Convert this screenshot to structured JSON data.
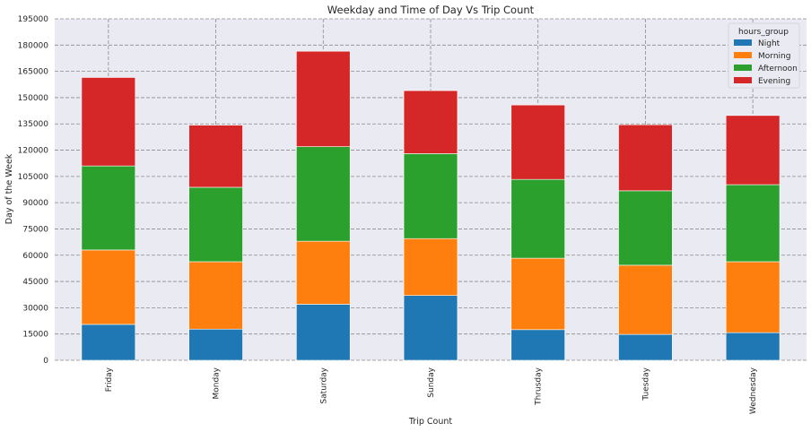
{
  "chart_data": {
    "type": "bar",
    "stacked": true,
    "title": "Weekday and Time of Day Vs Trip Count",
    "xlabel": "Trip Count",
    "ylabel": "Day of the Week",
    "ylim": [
      0,
      195000
    ],
    "yticks": [
      0,
      15000,
      30000,
      45000,
      60000,
      75000,
      90000,
      105000,
      120000,
      135000,
      150000,
      165000,
      180000,
      195000
    ],
    "grid": true,
    "legend": {
      "title": "hours_group",
      "position": "top-right"
    },
    "categories": [
      "Friday",
      "Monday",
      "Saturday",
      "Sunday",
      "Thrusday",
      "Tuesday",
      "Wednesday"
    ],
    "series": [
      {
        "name": "Night",
        "color": "#1f77b4",
        "values": [
          20500,
          17800,
          32000,
          37000,
          17500,
          14800,
          15800
        ]
      },
      {
        "name": "Morning",
        "color": "#ff7f0e",
        "values": [
          42500,
          38500,
          36000,
          32500,
          40800,
          39500,
          40500
        ]
      },
      {
        "name": "Afternoon",
        "color": "#2ca02c",
        "values": [
          48000,
          42500,
          54000,
          48500,
          45000,
          42500,
          44000
        ]
      },
      {
        "name": "Evening",
        "color": "#d62728",
        "values": [
          50500,
          35500,
          54500,
          36000,
          42500,
          37700,
          39500
        ]
      }
    ]
  }
}
